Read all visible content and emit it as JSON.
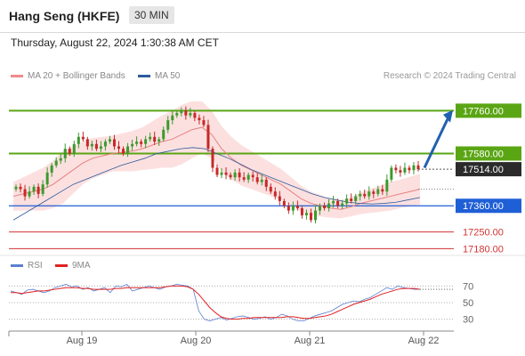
{
  "header": {
    "title": "Hang Seng (HKFE)",
    "interval": "30 MIN"
  },
  "timestamp": "Thursday, August 22, 2024 1:30:38 AM CET",
  "legend": [
    {
      "label": "MA 20 + Bollinger Bands",
      "color": "#f08a8a"
    },
    {
      "label": "MA 50",
      "color": "#2d5b9c"
    }
  ],
  "credit": "Research © 2024 Trading Central",
  "rsi_legend": [
    {
      "label": "RSI",
      "color": "#5b7fd0"
    },
    {
      "label": "9MA",
      "color": "#e02020"
    }
  ],
  "colors": {
    "up": "#3c9a2e",
    "down": "#c62828",
    "resistance": "#5aa514",
    "support": "#1f5fd6",
    "target": "#d33333",
    "arrow": "#2060b0",
    "band": "#fbd5d5"
  },
  "chart_data": [
    {
      "type": "candlestick",
      "title": "Hang Seng (HKFE)",
      "xlabel": "",
      "ylabel": "",
      "ylim": [
        17170,
        17870
      ],
      "x_ticks": [
        "Aug 19",
        "Aug 20",
        "Aug 21",
        "Aug 22"
      ],
      "last_price": "17514.00",
      "levels": [
        {
          "value": 17760,
          "label": "17760.00",
          "kind": "resistance"
        },
        {
          "value": 17580,
          "label": "17580.00",
          "kind": "resistance"
        },
        {
          "value": 17360,
          "label": "17360.00",
          "kind": "support"
        },
        {
          "value": 17250,
          "label": "17250.00",
          "kind": "target"
        },
        {
          "value": 17180,
          "label": "17180.00",
          "kind": "target"
        }
      ],
      "series": [
        {
          "name": "Hang Seng (HKFE)",
          "close": [
            17440,
            17430,
            17400,
            17420,
            17440,
            17410,
            17450,
            17500,
            17530,
            17550,
            17560,
            17600,
            17580,
            17620,
            17650,
            17640,
            17610,
            17620,
            17600,
            17610,
            17630,
            17640,
            17610,
            17600,
            17580,
            17610,
            17620,
            17630,
            17620,
            17640,
            17650,
            17630,
            17640,
            17680,
            17720,
            17740,
            17750,
            17760,
            17740,
            17750,
            17730,
            17720,
            17700,
            17600,
            17520,
            17490,
            17500,
            17490,
            17480,
            17500,
            17480,
            17470,
            17490,
            17480,
            17460,
            17470,
            17440,
            17420,
            17400,
            17380,
            17360,
            17340,
            17360,
            17350,
            17320,
            17330,
            17300,
            17340,
            17360,
            17350,
            17370,
            17380,
            17360,
            17370,
            17390,
            17380,
            17400,
            17410,
            17400,
            17420,
            17410,
            17430,
            17420,
            17470,
            17520,
            17510,
            17500,
            17520,
            17510,
            17530,
            17514
          ]
        },
        {
          "name": "MA 20",
          "values": [
            17400,
            17410,
            17420,
            17430,
            17450,
            17480,
            17510,
            17540,
            17560,
            17570,
            17580,
            17585,
            17590,
            17600,
            17615,
            17630,
            17640,
            17660,
            17680,
            17690,
            17660,
            17600,
            17560,
            17530,
            17510,
            17490,
            17470,
            17450,
            17420,
            17390,
            17370,
            17360,
            17350,
            17345,
            17355,
            17370,
            17380,
            17390,
            17400,
            17410,
            17420,
            17430
          ]
        },
        {
          "name": "MA 50",
          "values": [
            17300,
            17330,
            17360,
            17390,
            17420,
            17450,
            17470,
            17490,
            17510,
            17530,
            17545,
            17560,
            17580,
            17590,
            17600,
            17605,
            17600,
            17580,
            17560,
            17535,
            17510,
            17490,
            17470,
            17450,
            17430,
            17410,
            17395,
            17385,
            17375,
            17370,
            17368,
            17370,
            17375,
            17385,
            17395
          ]
        }
      ]
    },
    {
      "type": "line",
      "xlabel": "",
      "ylabel": "",
      "ylim": [
        20,
        80
      ],
      "y_ticks": [
        70,
        50,
        30
      ],
      "series": [
        {
          "name": "RSI",
          "values": [
            64,
            62,
            60,
            65,
            66,
            64,
            62,
            64,
            68,
            70,
            72,
            69,
            70,
            66,
            68,
            64,
            66,
            68,
            62,
            70,
            69,
            72,
            64,
            66,
            68,
            70,
            68,
            66,
            69,
            70,
            72,
            71,
            70,
            66,
            40,
            30,
            28,
            30,
            32,
            29,
            31,
            33,
            34,
            32,
            30,
            31,
            33,
            30,
            32,
            36,
            34,
            30,
            28,
            28,
            31,
            34,
            36,
            38,
            40,
            44,
            48,
            50,
            52,
            51,
            54,
            56,
            60,
            64,
            68,
            66,
            70,
            68,
            67,
            66,
            66
          ]
        },
        {
          "name": "9MA",
          "values": [
            62,
            62,
            61,
            62,
            63,
            64,
            64,
            65,
            66,
            67,
            68,
            68,
            68,
            67,
            67,
            66,
            66,
            66,
            66,
            67,
            67,
            68,
            68,
            68,
            68,
            68,
            68,
            68,
            69,
            70,
            70,
            70,
            69,
            66,
            60,
            52,
            44,
            38,
            33,
            31,
            30,
            30,
            31,
            31,
            32,
            32,
            32,
            32,
            32,
            32,
            33,
            33,
            32,
            31,
            31,
            32,
            33,
            34,
            36,
            39,
            42,
            45,
            48,
            50,
            52,
            54,
            57,
            60,
            62,
            64,
            66,
            67,
            67,
            67,
            66
          ]
        }
      ]
    }
  ]
}
